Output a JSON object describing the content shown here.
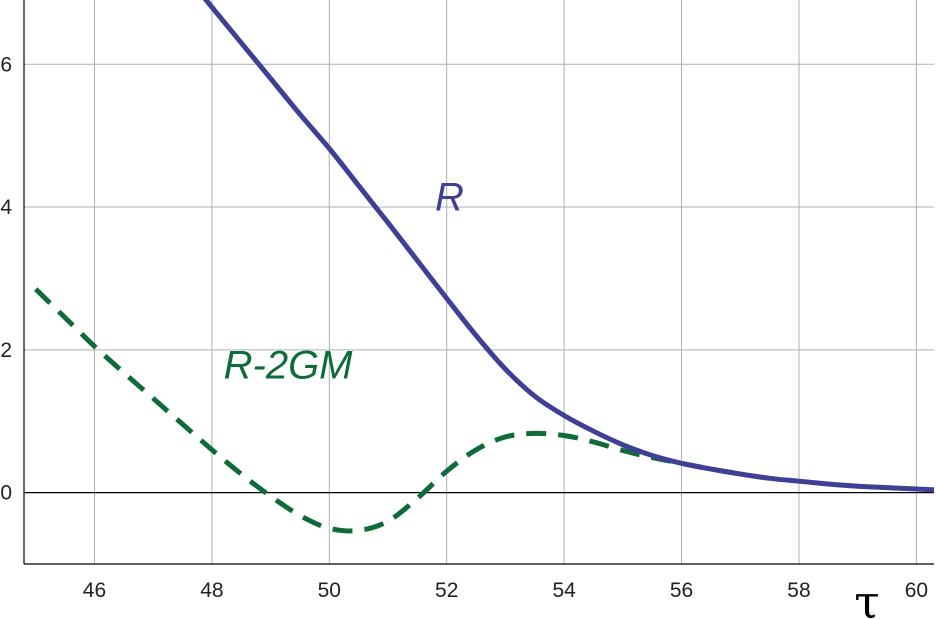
{
  "chart_data": {
    "type": "line",
    "title": "",
    "xlabel": "τ",
    "ylabel": "",
    "xlim": [
      44.8,
      60.3
    ],
    "ylim": [
      -1.0,
      6.9
    ],
    "grid": true,
    "x_ticks": [
      46,
      48,
      50,
      52,
      54,
      56,
      58,
      60
    ],
    "y_ticks": [
      0,
      2,
      4,
      6
    ],
    "series": [
      {
        "name": "R",
        "color": "#3f3f96",
        "style": "solid",
        "x": [
          47.85,
          48.5,
          49.0,
          49.5,
          50.0,
          50.5,
          51.0,
          51.5,
          52.0,
          52.5,
          53.0,
          53.5,
          54.0,
          54.5,
          55.0,
          55.5,
          56.0,
          56.5,
          57.0,
          57.5,
          58.0,
          58.5,
          59.0,
          59.5,
          60.0,
          60.3
        ],
        "y": [
          6.95,
          6.3,
          5.8,
          5.3,
          4.82,
          4.3,
          3.78,
          3.25,
          2.72,
          2.2,
          1.73,
          1.35,
          1.08,
          0.86,
          0.67,
          0.52,
          0.41,
          0.33,
          0.26,
          0.2,
          0.16,
          0.12,
          0.09,
          0.07,
          0.05,
          0.04
        ]
      },
      {
        "name": "R-2GM",
        "color": "#0f6b3a",
        "style": "dashed",
        "x": [
          45.0,
          45.5,
          46.0,
          46.5,
          47.0,
          47.5,
          48.0,
          48.5,
          49.0,
          49.5,
          50.0,
          50.5,
          51.0,
          51.5,
          52.0,
          52.5,
          53.0,
          53.5,
          54.0,
          54.5,
          55.0,
          55.5,
          56.0,
          56.5,
          57.0
        ],
        "y": [
          2.85,
          2.45,
          2.05,
          1.68,
          1.32,
          0.96,
          0.6,
          0.26,
          -0.05,
          -0.32,
          -0.5,
          -0.53,
          -0.4,
          -0.08,
          0.3,
          0.6,
          0.78,
          0.83,
          0.8,
          0.71,
          0.59,
          0.49,
          0.41,
          0.33,
          0.26
        ]
      }
    ],
    "annotations": [
      {
        "text": "R",
        "x": 51.8,
        "y": 3.95,
        "color": "#3f3f96"
      },
      {
        "text": "R-2GM",
        "x": 48.2,
        "y": 1.6,
        "color": "#0f6b3a"
      }
    ]
  }
}
